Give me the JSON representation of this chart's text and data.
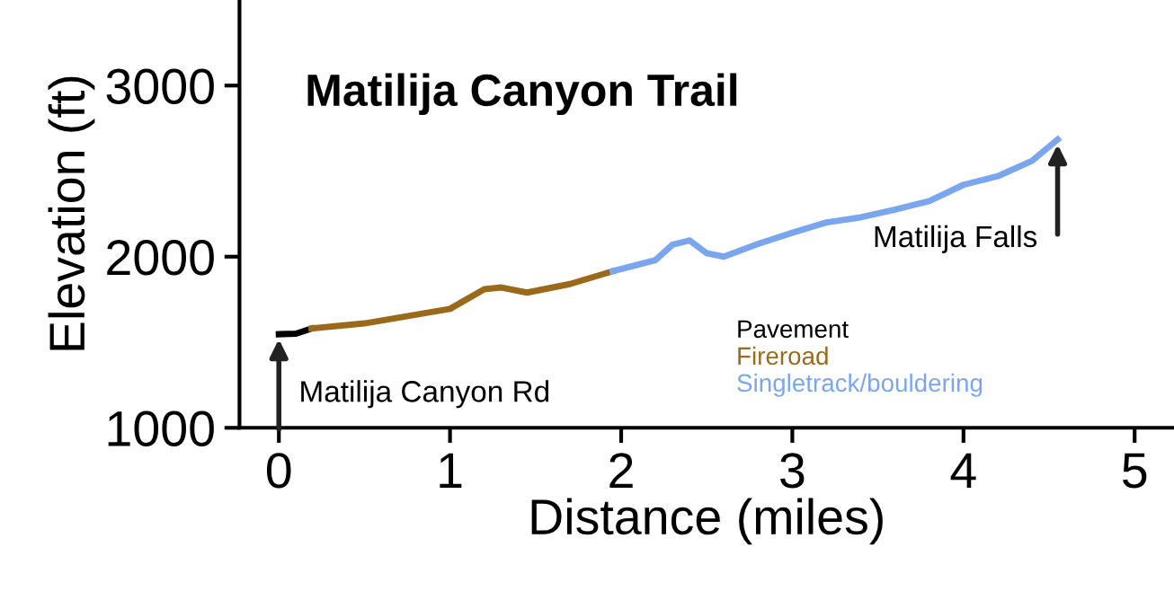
{
  "chart_data": {
    "type": "line",
    "title": "Matilija Canyon Trail",
    "xlabel": "Distance (miles)",
    "ylabel": "Elevation (ft)",
    "xlim": [
      -0.23,
      5.23
    ],
    "xticks": [
      0,
      1,
      2,
      3,
      4,
      5
    ],
    "ylim": [
      1000,
      3500
    ],
    "yticks": [
      1000,
      2000,
      3000
    ],
    "grid": false,
    "legend": "lower right",
    "marker": "none",
    "line_style": "solid",
    "series": [
      {
        "name": "Pavement",
        "color": "#000000",
        "x": [
          0,
          0.1,
          0.19
        ],
        "values": [
          1547,
          1550,
          1580
        ]
      },
      {
        "name": "Fireroad",
        "color": "#9a6a1a",
        "x": [
          0.19,
          0.5,
          1.0,
          1.2,
          1.3,
          1.45,
          1.7,
          1.95
        ],
        "values": [
          1580,
          1610,
          1695,
          1810,
          1820,
          1790,
          1840,
          1915
        ]
      },
      {
        "name": "Singletrack/bouldering",
        "color": "#7aa6f0",
        "x": [
          1.95,
          2.2,
          2.3,
          2.4,
          2.5,
          2.6,
          2.8,
          3.0,
          3.2,
          3.4,
          3.6,
          3.8,
          4.0,
          4.2,
          4.4,
          4.55
        ],
        "values": [
          1915,
          1980,
          2070,
          2095,
          2020,
          2000,
          2075,
          2140,
          2200,
          2230,
          2275,
          2325,
          2420,
          2470,
          2560,
          2685
        ]
      }
    ],
    "annotations": [
      {
        "text": "Matilija Canyon Rd",
        "x": 0,
        "y": 1547
      },
      {
        "text": "Matilija Falls",
        "x": 4.55,
        "y": 2685
      }
    ]
  }
}
